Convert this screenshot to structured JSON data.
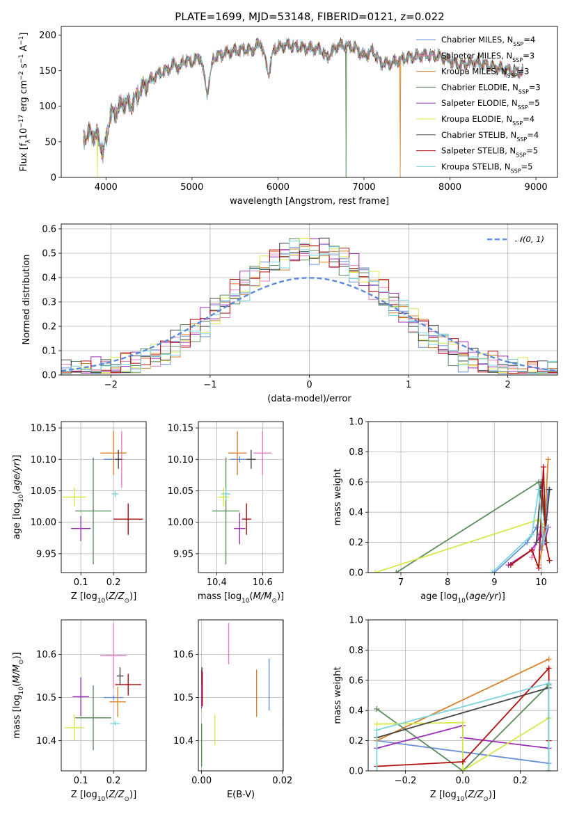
{
  "title": "PLATE=1699, MJD=53148, FIBERID=0121, z=0.022",
  "models": [
    {
      "name": "Chabrier MILES",
      "n": "4",
      "color": "#6a8fd8"
    },
    {
      "name": "Salpeter MILES",
      "n": "3",
      "color": "#e77fbf"
    },
    {
      "name": "Kroupa MILES",
      "n": "3",
      "color": "#d9822b"
    },
    {
      "name": "Chabrier ELODIE",
      "n": "3",
      "color": "#5c8c5c"
    },
    {
      "name": "Salpeter ELODIE",
      "n": "5",
      "color": "#9b30b8"
    },
    {
      "name": "Kroupa ELODIE",
      "n": "4",
      "color": "#d6e84a"
    },
    {
      "name": "Chabrier STELIB",
      "n": "4",
      "color": "#444444"
    },
    {
      "name": "Salpeter STELIB",
      "n": "5",
      "color": "#b01010"
    },
    {
      "name": "Kroupa STELIB",
      "n": "5",
      "color": "#7ad4dc"
    }
  ],
  "chart_data": [
    {
      "id": "spectrum",
      "type": "line",
      "xlabel": "wavelength [Angstrom, rest frame]",
      "ylabel": "Flux [f_λ 10^-17 erg cm^-2 s^-1 A^-1]",
      "xlim": [
        3480,
        9250
      ],
      "ylim": [
        0,
        212
      ],
      "xticks": [
        4000,
        5000,
        6000,
        7000,
        8000,
        9000
      ],
      "yticks": [
        0,
        50,
        100,
        150,
        200
      ],
      "x": [
        3740,
        3800,
        3900,
        3970,
        4000,
        4050,
        4100,
        4200,
        4300,
        4400,
        4500,
        4600,
        4700,
        4800,
        4861,
        4900,
        5000,
        5100,
        5175,
        5250,
        5400,
        5500,
        5600,
        5700,
        5800,
        5893,
        5950,
        6100,
        6300,
        6500,
        6563,
        6700,
        6900,
        7000,
        7100,
        7200,
        7300,
        7500,
        7700,
        7900,
        8100,
        8300,
        8500,
        8700,
        8850
      ],
      "y": [
        55,
        62,
        58,
        35,
        52,
        88,
        90,
        105,
        102,
        122,
        135,
        145,
        150,
        160,
        152,
        165,
        162,
        170,
        118,
        168,
        175,
        178,
        180,
        178,
        190,
        145,
        180,
        186,
        182,
        180,
        168,
        186,
        182,
        170,
        178,
        160,
        160,
        168,
        172,
        170,
        158,
        162,
        155,
        150,
        148
      ],
      "drops": [
        {
          "model": 5,
          "x": 3900
        },
        {
          "model": 3,
          "x": 6790
        },
        {
          "model": 2,
          "x": 7420
        }
      ]
    },
    {
      "id": "residuals",
      "type": "histogram",
      "xlabel": "(data-model)/error",
      "ylabel": "Normed distribution",
      "xlim": [
        -2.5,
        2.5
      ],
      "ylim": [
        0,
        0.62
      ],
      "xticks": [
        -2,
        -1,
        0,
        1,
        2
      ],
      "yticks": [
        0.0,
        0.1,
        0.2,
        0.3,
        0.4,
        0.5,
        0.6
      ],
      "legend": "𝒩(0, 1)",
      "legend_color": "#5b8bd9",
      "bin_width": 0.1,
      "bin_start": -2.5
    },
    {
      "id": "age-vs-Z",
      "type": "errorbar",
      "xlabel": "Z [log10(Z/Z⊙)]",
      "ylabel": "age  [log10(age/yr)]",
      "xlim": [
        0.04,
        0.3
      ],
      "ylim": [
        9.92,
        10.16
      ],
      "xticks": [
        0.1,
        0.2
      ],
      "yticks": [
        9.95,
        10.0,
        10.05,
        10.1,
        10.15
      ],
      "points": [
        {
          "model": 0,
          "x": 0.2,
          "y": 10.1,
          "xerr": 0.03,
          "yerr": 0.005
        },
        {
          "model": 1,
          "x": 0.225,
          "y": 10.1,
          "xerr": 0.005,
          "yerr": 0.045
        },
        {
          "model": 2,
          "x": 0.2,
          "y": 10.11,
          "xerr": 0.04,
          "yerr": 0.035
        },
        {
          "model": 3,
          "x": 0.138,
          "y": 10.018,
          "xerr": 0.055,
          "yerr": 0.085
        },
        {
          "model": 4,
          "x": 0.1,
          "y": 9.99,
          "xerr": 0.03,
          "yerr": 0.02
        },
        {
          "model": 5,
          "x": 0.08,
          "y": 10.04,
          "xerr": 0.035,
          "yerr": 0.015
        },
        {
          "model": 6,
          "x": 0.215,
          "y": 10.1,
          "xerr": 0.01,
          "yerr": 0.015
        },
        {
          "model": 7,
          "x": 0.245,
          "y": 10.005,
          "xerr": 0.045,
          "yerr": 0.025
        },
        {
          "model": 8,
          "x": 0.205,
          "y": 10.045,
          "xerr": 0.01,
          "yerr": 0.005
        }
      ]
    },
    {
      "id": "age-vs-mass",
      "type": "errorbar",
      "xlabel": "mass [log10(M/M⊙)]",
      "ylabel": "",
      "xlim": [
        10.32,
        10.69
      ],
      "ylim": [
        9.92,
        10.16
      ],
      "xticks": [
        10.4,
        10.6
      ],
      "yticks": [
        9.95,
        10.0,
        10.05,
        10.1,
        10.15
      ],
      "points": [
        {
          "model": 0,
          "x": 10.5,
          "y": 10.1,
          "xerr": 0.04,
          "yerr": 0.005
        },
        {
          "model": 1,
          "x": 10.6,
          "y": 10.11,
          "xerr": 0.04,
          "yerr": 0.035
        },
        {
          "model": 2,
          "x": 10.49,
          "y": 10.11,
          "xerr": 0.04,
          "yerr": 0.035
        },
        {
          "model": 3,
          "x": 10.44,
          "y": 10.018,
          "xerr": 0.06,
          "yerr": 0.085
        },
        {
          "model": 4,
          "x": 10.5,
          "y": 9.99,
          "xerr": 0.025,
          "yerr": 0.025
        },
        {
          "model": 5,
          "x": 10.43,
          "y": 10.04,
          "xerr": 0.025,
          "yerr": 0.015
        },
        {
          "model": 6,
          "x": 10.55,
          "y": 10.1,
          "xerr": 0.02,
          "yerr": 0.015
        },
        {
          "model": 7,
          "x": 10.53,
          "y": 10.005,
          "xerr": 0.02,
          "yerr": 0.025
        },
        {
          "model": 8,
          "x": 10.44,
          "y": 10.045,
          "xerr": 0.02,
          "yerr": 0.01
        }
      ]
    },
    {
      "id": "weight-vs-age",
      "type": "line",
      "xlabel": "age  [log10(age/yr)]",
      "ylabel": "mass weight",
      "xlim": [
        6.3,
        10.35
      ],
      "ylim": [
        0,
        1
      ],
      "xticks": [
        7,
        8,
        9,
        10
      ],
      "yticks": [
        0.0,
        0.2,
        0.4,
        0.6,
        0.8,
        1.0
      ],
      "series": [
        {
          "model": 0,
          "x": [
            9.0,
            9.7,
            9.9,
            10.0,
            10.1,
            10.15
          ],
          "y": [
            0.0,
            0.2,
            0.3,
            0.15,
            0.35,
            0.55
          ]
        },
        {
          "model": 1,
          "x": [
            9.8,
            10.0,
            10.05,
            10.12
          ],
          "y": [
            0.1,
            0.3,
            0.2,
            0.4
          ]
        },
        {
          "model": 2,
          "x": [
            9.95,
            10.05,
            10.15
          ],
          "y": [
            0.05,
            0.2,
            0.75
          ]
        },
        {
          "model": 3,
          "x": [
            6.9,
            9.95,
            10.05,
            10.12
          ],
          "y": [
            0.0,
            0.6,
            0.4,
            0.2
          ]
        },
        {
          "model": 4,
          "x": [
            9.3,
            9.8,
            10.0,
            10.08,
            10.15
          ],
          "y": [
            0.05,
            0.15,
            0.25,
            0.2,
            0.3
          ]
        },
        {
          "model": 5,
          "x": [
            6.45,
            9.95,
            10.1
          ],
          "y": [
            0.0,
            0.35,
            0.3
          ]
        },
        {
          "model": 6,
          "x": [
            9.9,
            10.0,
            10.1,
            10.18
          ],
          "y": [
            0.2,
            0.6,
            0.3,
            0.55
          ]
        },
        {
          "model": 7,
          "x": [
            9.35,
            9.8,
            9.95,
            10.05,
            10.1,
            10.18
          ],
          "y": [
            0.05,
            0.15,
            0.03,
            0.7,
            0.2,
            0.08
          ]
        },
        {
          "model": 8,
          "x": [
            8.95,
            9.8,
            9.95,
            10.05,
            10.12
          ],
          "y": [
            0.0,
            0.25,
            0.55,
            0.2,
            0.3
          ]
        }
      ]
    },
    {
      "id": "mass-vs-Z",
      "type": "errorbar",
      "xlabel": "Z [log10(Z/Z⊙)]",
      "ylabel": "mass [log10(M/M⊙)]",
      "xlim": [
        0.04,
        0.3
      ],
      "ylim": [
        10.33,
        10.68
      ],
      "xticks": [
        0.1,
        0.2
      ],
      "yticks": [
        10.4,
        10.5,
        10.6
      ],
      "points": [
        {
          "model": 0,
          "x": 0.2,
          "y": 10.5,
          "xerr": 0.03,
          "yerr": 0.005
        },
        {
          "model": 1,
          "x": 0.2,
          "y": 10.597,
          "xerr": 0.04,
          "yerr": 0.075
        },
        {
          "model": 2,
          "x": 0.213,
          "y": 10.49,
          "xerr": 0.025,
          "yerr": 0.035
        },
        {
          "model": 3,
          "x": 0.138,
          "y": 10.453,
          "xerr": 0.055,
          "yerr": 0.075
        },
        {
          "model": 4,
          "x": 0.1,
          "y": 10.502,
          "xerr": 0.025,
          "yerr": 0.045
        },
        {
          "model": 5,
          "x": 0.08,
          "y": 10.43,
          "xerr": 0.03,
          "yerr": 0.03
        },
        {
          "model": 6,
          "x": 0.22,
          "y": 10.55,
          "xerr": 0.01,
          "yerr": 0.02
        },
        {
          "model": 7,
          "x": 0.245,
          "y": 10.53,
          "xerr": 0.04,
          "yerr": 0.025
        },
        {
          "model": 8,
          "x": 0.205,
          "y": 10.44,
          "xerr": 0.015,
          "yerr": 0.005
        }
      ]
    },
    {
      "id": "mass-vs-ebv",
      "type": "errorbar",
      "xlabel": "E(B-V)",
      "ylabel": "",
      "xlim": [
        -0.0008,
        0.0202
      ],
      "ylim": [
        10.33,
        10.68
      ],
      "xticks": [
        0.0,
        0.02
      ],
      "yticks": [
        10.4,
        10.5,
        10.6
      ],
      "points": [
        {
          "model": 0,
          "x": 0.0167,
          "y": 10.53,
          "xerr": 0,
          "yerr": 0.06
        },
        {
          "model": 1,
          "x": 0.0067,
          "y": 10.625,
          "xerr": 0,
          "yerr": 0.048
        },
        {
          "model": 2,
          "x": 0.0136,
          "y": 10.51,
          "xerr": 0,
          "yerr": 0.055
        },
        {
          "model": 3,
          "x": 0.0,
          "y": 10.39,
          "xerr": 0,
          "yerr": 0.05
        },
        {
          "model": 4,
          "x": 0.0,
          "y": 10.52,
          "xerr": 0,
          "yerr": 0.045
        },
        {
          "model": 5,
          "x": 0.0033,
          "y": 10.425,
          "xerr": 0,
          "yerr": 0.035
        },
        {
          "model": 6,
          "x": 0.0001,
          "y": 10.55,
          "xerr": 0,
          "yerr": 0.02
        },
        {
          "model": 7,
          "x": 0.0002,
          "y": 10.52,
          "xerr": 0,
          "yerr": 0.04
        },
        {
          "model": 8,
          "x": 0.0202,
          "y": 10.44,
          "xerr": 0,
          "yerr": 0.01
        }
      ]
    },
    {
      "id": "weight-vs-Z",
      "type": "line",
      "xlabel": "Z [log10(Z/Z⊙)]",
      "ylabel": "mass weight",
      "xlim": [
        -0.33,
        0.33
      ],
      "ylim": [
        0,
        1
      ],
      "xticks": [
        -0.2,
        0.0,
        0.2
      ],
      "yticks": [
        0.0,
        0.2,
        0.4,
        0.6,
        0.8,
        1.0
      ],
      "series": [
        {
          "model": 0,
          "x": [
            -0.3,
            0.3,
            0.3
          ],
          "y": [
            0.2,
            0.05,
            0.55
          ]
        },
        {
          "model": 1,
          "x": [
            0.3,
            0.3
          ],
          "y": [
            0.35,
            0.55
          ]
        },
        {
          "model": 2,
          "x": [
            -0.3,
            0.3
          ],
          "y": [
            0.2,
            0.74
          ]
        },
        {
          "model": 3,
          "x": [
            -0.3,
            0.0,
            0.3
          ],
          "y": [
            0.41,
            0.0,
            0.57
          ]
        },
        {
          "model": 4,
          "x": [
            -0.3,
            0.0,
            0.0,
            0.3
          ],
          "y": [
            0.15,
            0.3,
            0.22,
            0.15
          ]
        },
        {
          "model": 5,
          "x": [
            -0.3,
            0.0,
            0.0,
            0.3
          ],
          "y": [
            0.31,
            0.32,
            0.0,
            0.35
          ]
        },
        {
          "model": 6,
          "x": [
            -0.3,
            0.3,
            0.3
          ],
          "y": [
            0.22,
            0.55,
            0.0
          ]
        },
        {
          "model": 7,
          "x": [
            -0.3,
            0.0,
            0.3,
            0.3
          ],
          "y": [
            0.03,
            0.06,
            0.68,
            0.2
          ]
        },
        {
          "model": 8,
          "x": [
            -0.3,
            -0.3,
            0.3,
            0.3
          ],
          "y": [
            0.0,
            0.27,
            0.58,
            0.0
          ]
        }
      ]
    }
  ]
}
